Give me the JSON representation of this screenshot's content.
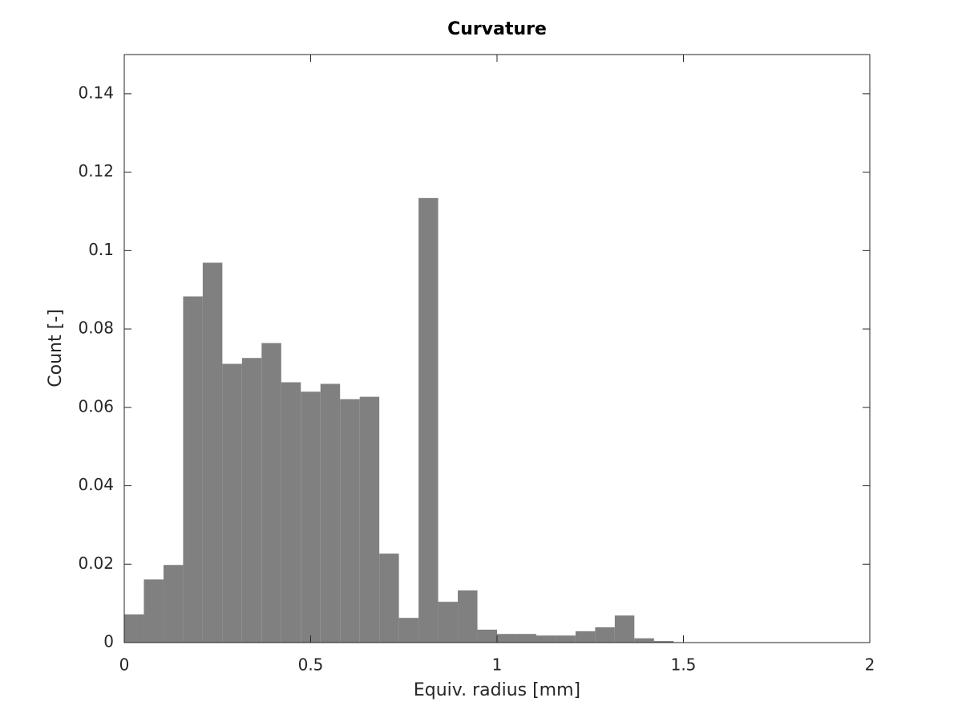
{
  "chart_data": {
    "type": "histogram",
    "title": "Curvature",
    "x_label": "Equiv. radius [mm]",
    "y_label": "Count [-]",
    "bins": [
      0,
      0.0526,
      0.1053,
      0.1579,
      0.2105,
      0.2632,
      0.3158,
      0.3684,
      0.4211,
      0.4737,
      0.5263,
      0.5789,
      0.6316,
      0.6842,
      0.7368,
      0.7895,
      0.8421,
      0.8947,
      0.9474,
      1,
      1.0526,
      1.1053,
      1.1579,
      1.2105,
      1.2632,
      1.3158,
      1.3684,
      1.4211,
      1.4737,
      1.5263,
      1.5789,
      1.6316,
      1.6842,
      1.7368,
      1.7895,
      1.8421,
      1.8947,
      1.9474,
      2
    ],
    "counts": [
      0.0072,
      0.0161,
      0.0198,
      0.0883,
      0.0969,
      0.0711,
      0.0726,
      0.0764,
      0.0664,
      0.064,
      0.066,
      0.0621,
      0.0627,
      0.0227,
      0.0063,
      0.1134,
      0.0104,
      0.0133,
      0.0033,
      0.0022,
      0.0022,
      0.0018,
      0.0018,
      0.0029,
      0.0039,
      0.0069,
      0.0011,
      0.0004,
      0,
      0,
      0,
      0,
      0,
      0,
      0,
      0,
      0,
      0
    ],
    "color": "#808080",
    "xlim": [
      0,
      2
    ],
    "xticks": [
      0,
      0.5,
      1,
      1.5,
      2
    ],
    "ylim": [
      0,
      0.15
    ],
    "yticks": [
      0,
      0.02,
      0.04,
      0.06,
      0.08,
      0.1,
      0.12,
      0.14
    ]
  }
}
